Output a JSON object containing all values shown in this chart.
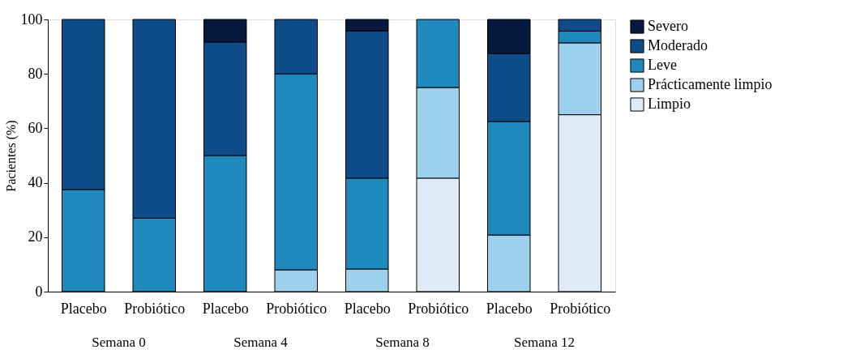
{
  "chart_data": {
    "type": "bar",
    "stacked": true,
    "ylabel": "Pacientes (%)",
    "ylim": [
      0,
      100
    ],
    "yticks": [
      0,
      20,
      40,
      60,
      80,
      100
    ],
    "grid": false,
    "legend": "right",
    "categories": [
      "Placebo",
      "Probiótico",
      "Placebo",
      "Probiótico",
      "Placebo",
      "Probiótico",
      "Placebo",
      "Probiótico"
    ],
    "annotations": [
      "Semana 0",
      "Semana 4",
      "Semana 8",
      "Semana 12"
    ],
    "series": [
      {
        "name": "Limpio",
        "color": "#deebf7",
        "values": [
          null,
          null,
          null,
          null,
          null,
          41.7,
          null,
          65
        ]
      },
      {
        "name": "Prácticamente limpio",
        "color": "#9dd0ec",
        "values": [
          null,
          null,
          null,
          8,
          8.3,
          33.3,
          20.8,
          26.4
        ]
      },
      {
        "name": "Leve",
        "color": "#1f88bd",
        "values": [
          37.5,
          27,
          50,
          72,
          33.4,
          25,
          41.7,
          4.3
        ]
      },
      {
        "name": "Moderado",
        "color": "#0e4d89",
        "values": [
          62.5,
          73,
          41.7,
          20,
          54.1,
          null,
          25,
          4.3
        ]
      },
      {
        "name": "Severo",
        "color": "#08193f",
        "values": [
          null,
          null,
          8.3,
          null,
          4.2,
          null,
          12.5,
          null
        ]
      }
    ]
  }
}
